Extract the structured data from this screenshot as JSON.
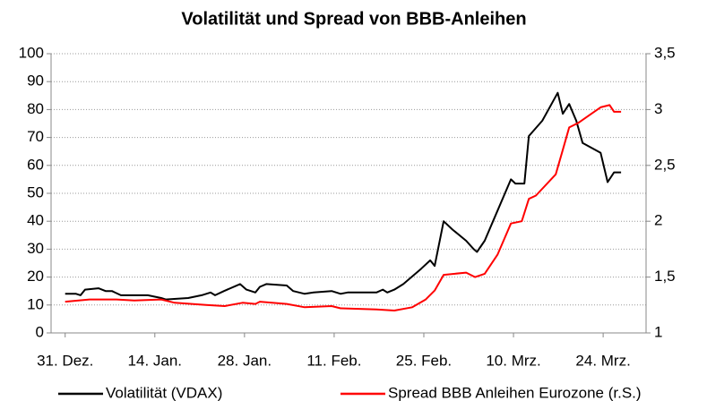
{
  "chart_data": {
    "type": "line",
    "title": "Volatilität und Spread von BBB-Anleihen",
    "xlim": [
      -2.2,
      90.7
    ],
    "xticks": [
      {
        "value": 0,
        "label": "31. Dez."
      },
      {
        "value": 14,
        "label": "14. Jan."
      },
      {
        "value": 28,
        "label": "28. Jan."
      },
      {
        "value": 42,
        "label": "11. Feb."
      },
      {
        "value": 56,
        "label": "25. Feb."
      },
      {
        "value": 70,
        "label": "10. Mrz."
      },
      {
        "value": 84,
        "label": "24. Mrz."
      }
    ],
    "ylim": [
      0,
      100
    ],
    "yticks": [
      0,
      10,
      20,
      30,
      40,
      50,
      60,
      70,
      80,
      90,
      100
    ],
    "y2lim": [
      1,
      3.5
    ],
    "y2ticks": [
      1,
      {
        "value": 1.5,
        "label": "1,5"
      },
      2,
      {
        "value": 2.5,
        "label": "2,5"
      },
      3,
      {
        "value": 3.5,
        "label": "3,5"
      }
    ],
    "grid": true,
    "legend": "bottom",
    "series": [
      {
        "name": "Volatilität (VDAX)",
        "color": "#000000",
        "x": [
          0,
          1.7,
          2.4,
          3.1,
          5.2,
          6.3,
          7.3,
          8.7,
          12.9,
          15,
          15.7,
          19.2,
          21.3,
          22.7,
          23.4,
          24.8,
          27.3,
          28.3,
          29.7,
          30.4,
          31.4,
          34.6,
          35.6,
          37.4,
          38.8,
          41.6,
          43,
          44.1,
          45.1,
          48.6,
          49.6,
          50.3,
          51.4,
          52.8,
          55.6,
          57,
          57.7,
          59.1,
          60.5,
          62.6,
          63.8,
          64.3,
          65.5,
          66.8,
          69.6,
          70.3,
          71.7,
          72.4,
          74.5,
          76.9,
          77.7,
          78.7,
          79.8,
          80.8,
          83.6,
          84.7,
          85.7,
          86.8
        ],
        "values": [
          14,
          14,
          13.5,
          15.5,
          16,
          15,
          15,
          13.5,
          13.5,
          12.5,
          12,
          12.5,
          13.5,
          14.5,
          13.5,
          15,
          17.5,
          15.5,
          14.5,
          16.5,
          17.5,
          17,
          15,
          14,
          14.5,
          15,
          14,
          14.5,
          14.5,
          14.5,
          15.5,
          14.5,
          15.5,
          17.5,
          23,
          26,
          24,
          40,
          37,
          33,
          30,
          29,
          33,
          40,
          55,
          53.5,
          53.5,
          70.5,
          76,
          86,
          78.5,
          82,
          76,
          68,
          64.5,
          54,
          57.5,
          57.5
        ]
      },
      {
        "name": "Spread BBB Anleihen Eurozone (r.S.)",
        "color": "#ff0000",
        "axis": "y2",
        "x": [
          0,
          3.8,
          8,
          10.8,
          15,
          17.1,
          22,
          24.9,
          27.7,
          29.7,
          30.4,
          34.6,
          37.4,
          41.6,
          43,
          48.6,
          51.4,
          54.2,
          56.3,
          57.7,
          59.1,
          62.6,
          64,
          65.5,
          67.5,
          69.6,
          71.3,
          72.4,
          73.5,
          76.6,
          77.6,
          78.7,
          80.1,
          83.6,
          85,
          85.7,
          86.8
        ],
        "values": [
          1.28,
          1.3,
          1.3,
          1.29,
          1.3,
          1.27,
          1.25,
          1.24,
          1.27,
          1.26,
          1.28,
          1.26,
          1.23,
          1.24,
          1.22,
          1.21,
          1.2,
          1.23,
          1.3,
          1.38,
          1.52,
          1.54,
          1.5,
          1.53,
          1.7,
          1.98,
          2.0,
          2.2,
          2.23,
          2.42,
          2.62,
          2.84,
          2.88,
          3.02,
          3.04,
          2.98,
          2.98
        ]
      }
    ]
  }
}
